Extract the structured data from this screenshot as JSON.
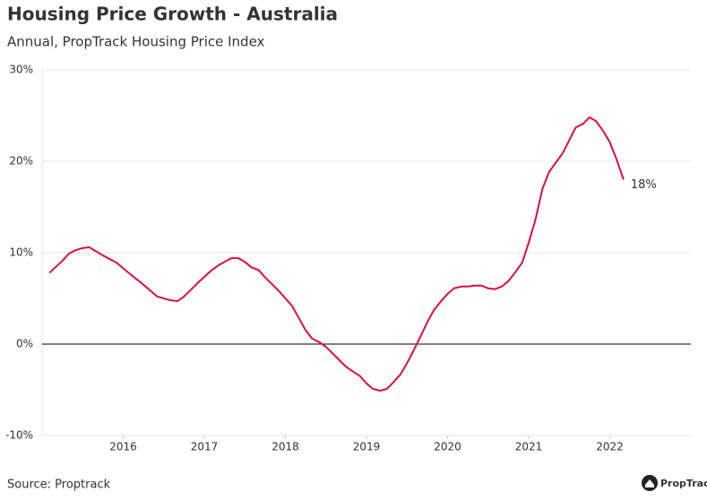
{
  "chart_data": {
    "type": "line",
    "title": "Housing Price Growth - Australia",
    "subtitle": "Annual, PropTrack Housing Price Index",
    "source": "Source: Proptrack",
    "logo": "PropTrack",
    "x": [
      2015.09,
      2015.25,
      2015.33,
      2015.42,
      2015.5,
      2015.58,
      2015.75,
      2015.92,
      2016.08,
      2016.25,
      2016.42,
      2016.58,
      2016.67,
      2016.75,
      2016.92,
      2017.08,
      2017.17,
      2017.25,
      2017.33,
      2017.42,
      2017.5,
      2017.58,
      2017.67,
      2017.75,
      2017.83,
      2017.92,
      2018.0,
      2018.08,
      2018.17,
      2018.25,
      2018.33,
      2018.42,
      2018.5,
      2018.58,
      2018.67,
      2018.75,
      2018.92,
      2019.0,
      2019.08,
      2019.17,
      2019.25,
      2019.33,
      2019.42,
      2019.5,
      2019.58,
      2019.67,
      2019.75,
      2019.83,
      2019.92,
      2020.0,
      2020.08,
      2020.17,
      2020.25,
      2020.33,
      2020.42,
      2020.5,
      2020.58,
      2020.67,
      2020.75,
      2020.83,
      2020.92,
      2021.0,
      2021.08,
      2021.17,
      2021.25,
      2021.33,
      2021.42,
      2021.5,
      2021.58,
      2021.67,
      2021.75,
      2021.83,
      2021.92,
      2022.0,
      2022.08,
      2022.17
    ],
    "values": [
      7.8,
      9.1,
      9.9,
      10.3,
      10.5,
      10.6,
      9.7,
      8.9,
      7.7,
      6.5,
      5.2,
      4.8,
      4.7,
      5.2,
      6.7,
      8.0,
      8.6,
      9.0,
      9.4,
      9.4,
      9.0,
      8.4,
      8.1,
      7.3,
      6.6,
      5.8,
      5.0,
      4.2,
      2.8,
      1.5,
      0.6,
      0.2,
      -0.3,
      -1.0,
      -1.8,
      -2.5,
      -3.5,
      -4.3,
      -4.9,
      -5.1,
      -4.9,
      -4.2,
      -3.3,
      -2.1,
      -0.7,
      0.9,
      2.4,
      3.7,
      4.7,
      5.5,
      6.1,
      6.3,
      6.3,
      6.4,
      6.4,
      6.1,
      6.0,
      6.3,
      6.9,
      7.8,
      8.9,
      11.1,
      13.5,
      17.0,
      18.8,
      19.8,
      20.9,
      22.3,
      23.7,
      24.1,
      24.8,
      24.4,
      23.3,
      22.1,
      20.3,
      18.0
    ],
    "value_labels": [
      null,
      null,
      null,
      null,
      null,
      null,
      null,
      null,
      null,
      null,
      null,
      null,
      null,
      null,
      null,
      null,
      null,
      null,
      null,
      null,
      null,
      null,
      null,
      null,
      null,
      null,
      null,
      null,
      null,
      null,
      null,
      null,
      null,
      null,
      null,
      null,
      null,
      null,
      null,
      null,
      null,
      null,
      null,
      null,
      null,
      null,
      null,
      null,
      null,
      null,
      null,
      null,
      null,
      null,
      null,
      null,
      null,
      null,
      null,
      null,
      null,
      null,
      null,
      null,
      null,
      null,
      null,
      null,
      null,
      null,
      null,
      null,
      null,
      null,
      null,
      "18%"
    ],
    "color": "#d6103f",
    "xlim": [
      2015,
      2023
    ],
    "xticks": [
      2016,
      2017,
      2018,
      2019,
      2020,
      2021,
      2022
    ],
    "ylim": [
      -10,
      30
    ],
    "yticks": [
      {
        "value": -10,
        "label": "-10%"
      },
      {
        "value": 0,
        "label": "0%"
      },
      {
        "value": 10,
        "label": "10%"
      },
      {
        "value": 20,
        "label": "20%"
      },
      {
        "value": 30,
        "label": "30%"
      }
    ],
    "grid": true
  }
}
